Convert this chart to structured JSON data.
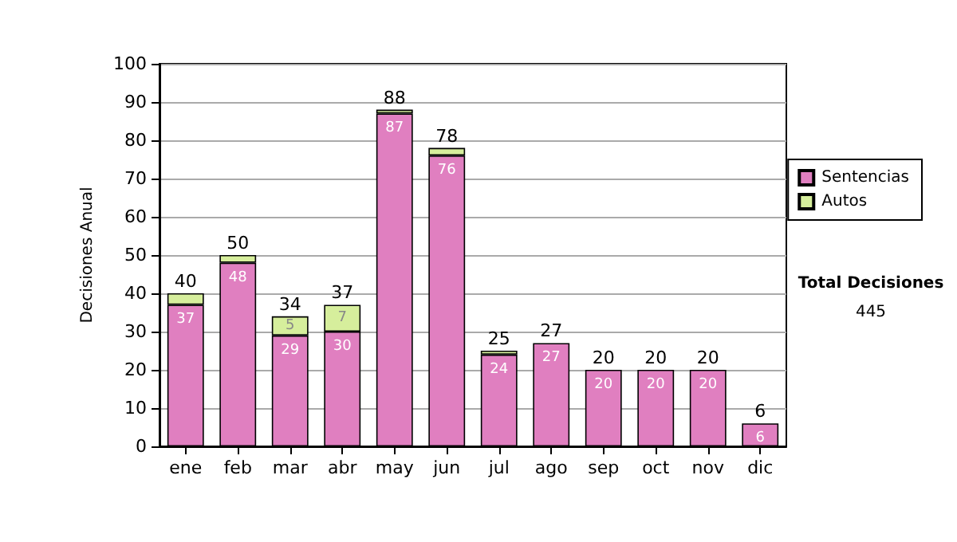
{
  "chart_data": {
    "type": "bar",
    "stacked": true,
    "ylabel": "Decisiones Anual",
    "categories": [
      "ene",
      "feb",
      "mar",
      "abr",
      "may",
      "jun",
      "jul",
      "ago",
      "sep",
      "oct",
      "nov",
      "dic"
    ],
    "series": [
      {
        "name": "Sentencias",
        "color": "#e07fc0",
        "values": [
          37,
          48,
          29,
          30,
          87,
          76,
          24,
          27,
          20,
          20,
          20,
          6
        ],
        "value_labels": [
          "37",
          "48",
          "29",
          "30",
          "87",
          "76",
          "24",
          "27",
          "20",
          "20",
          "20",
          "6"
        ]
      },
      {
        "name": "Autos",
        "color": "#d6ee9c",
        "values": [
          3,
          2,
          5,
          7,
          1,
          2,
          1,
          0,
          0,
          0,
          0,
          0
        ],
        "value_labels": [
          null,
          null,
          "5",
          "7",
          null,
          null,
          null,
          null,
          null,
          null,
          null,
          null
        ]
      }
    ],
    "totals": [
      "40",
      "50",
      "34",
      "37",
      "88",
      "78",
      "25",
      "27",
      "20",
      "20",
      "20",
      "6"
    ],
    "ylim": [
      0,
      100
    ],
    "yticks": [
      0,
      10,
      20,
      30,
      40,
      50,
      60,
      70,
      80,
      90,
      100
    ],
    "grid": "y",
    "legend": "right",
    "annotations": [
      "Total Decisiones",
      "445"
    ]
  }
}
